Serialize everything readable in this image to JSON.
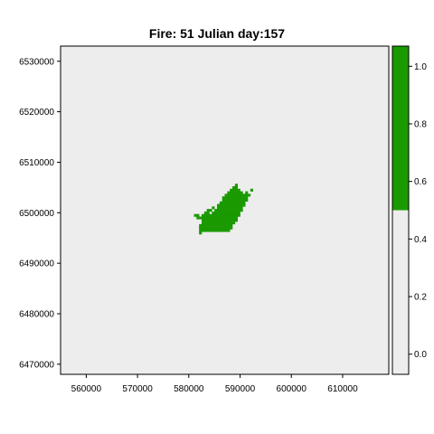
{
  "chart_data": {
    "type": "heatmap",
    "title": "Fire: 51    Julian day:157",
    "xlabel": "",
    "ylabel": "",
    "xlim": [
      555000,
      619000
    ],
    "ylim": [
      6468000,
      6533000
    ],
    "x_ticks": [
      560000,
      570000,
      580000,
      590000,
      600000,
      610000
    ],
    "x_tick_labels": [
      "560000",
      "570000",
      "580000",
      "590000",
      "600000",
      "610000"
    ],
    "y_ticks": [
      6470000,
      6480000,
      6490000,
      6500000,
      6510000,
      6520000,
      6530000
    ],
    "y_tick_labels": [
      "6470000",
      "6480000",
      "6490000",
      "6500000",
      "6510000",
      "6520000",
      "6530000"
    ],
    "background_value": 0,
    "background_color": "#ededed",
    "burned_value": 1,
    "burned_color": "#1a9a00",
    "cell_size": 500,
    "colorbar": {
      "range": [
        -0.07,
        1.07
      ],
      "threshold": 0.5,
      "low_color": "#ededed",
      "high_color": "#1a9a00",
      "ticks": [
        0.0,
        0.2,
        0.4,
        0.6,
        0.8,
        1.0
      ],
      "tick_labels": [
        "0.0",
        "0.2",
        "0.4",
        "0.6",
        "0.8",
        "1.0"
      ]
    },
    "burned_rows": [
      {
        "y": 6505500,
        "x_ranges": [
          [
            589250,
            589250
          ]
        ]
      },
      {
        "y": 6505000,
        "x_ranges": [
          [
            588750,
            589250
          ]
        ]
      },
      {
        "y": 6504500,
        "x_ranges": [
          [
            588250,
            589750
          ],
          [
            592250,
            592250
          ]
        ]
      },
      {
        "y": 6504000,
        "x_ranges": [
          [
            587750,
            590250
          ],
          [
            591250,
            591250
          ]
        ]
      },
      {
        "y": 6503500,
        "x_ranges": [
          [
            587250,
            590750
          ],
          [
            591250,
            591750
          ]
        ]
      },
      {
        "y": 6503000,
        "x_ranges": [
          [
            586750,
            591250
          ]
        ]
      },
      {
        "y": 6502500,
        "x_ranges": [
          [
            586750,
            591250
          ]
        ]
      },
      {
        "y": 6502000,
        "x_ranges": [
          [
            586250,
            590750
          ]
        ]
      },
      {
        "y": 6501500,
        "x_ranges": [
          [
            585750,
            590750
          ]
        ]
      },
      {
        "y": 6501000,
        "x_ranges": [
          [
            584750,
            584750
          ],
          [
            585750,
            590250
          ]
        ]
      },
      {
        "y": 6500500,
        "x_ranges": [
          [
            583750,
            584250
          ],
          [
            585250,
            590250
          ]
        ]
      },
      {
        "y": 6500000,
        "x_ranges": [
          [
            583250,
            583750
          ],
          [
            584750,
            589750
          ]
        ]
      },
      {
        "y": 6499500,
        "x_ranges": [
          [
            581250,
            581750
          ],
          [
            582750,
            589750
          ]
        ]
      },
      {
        "y": 6499000,
        "x_ranges": [
          [
            581750,
            589250
          ]
        ]
      },
      {
        "y": 6498500,
        "x_ranges": [
          [
            582750,
            589250
          ]
        ]
      },
      {
        "y": 6498000,
        "x_ranges": [
          [
            582750,
            588750
          ]
        ]
      },
      {
        "y": 6497500,
        "x_ranges": [
          [
            582250,
            588250
          ]
        ]
      },
      {
        "y": 6497000,
        "x_ranges": [
          [
            582250,
            588250
          ]
        ]
      },
      {
        "y": 6496500,
        "x_ranges": [
          [
            582250,
            585750
          ],
          [
            586250,
            587750
          ]
        ]
      },
      {
        "y": 6496000,
        "x_ranges": [
          [
            582250,
            582250
          ]
        ]
      }
    ]
  }
}
